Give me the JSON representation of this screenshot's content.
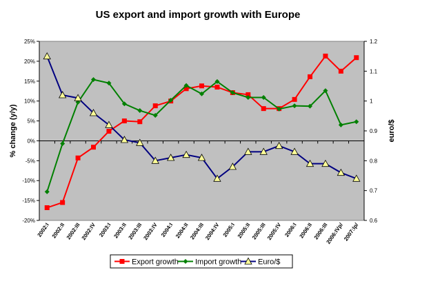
{
  "chart_data": {
    "type": "line",
    "title": "US export and import growth with Europe",
    "y_label": "% change (y/y)",
    "y2_label": "euro/$",
    "categories": [
      "2002:I",
      "2002:II",
      "2002:III",
      "2002:IV",
      "2003:I",
      "2003:II",
      "2003:III",
      "2003:IV",
      "2004:I",
      "2004:II",
      "2004:III",
      "2004:IV",
      "2005:I",
      "2005:II",
      "2005:III",
      "2005:IV",
      "2006:I",
      "2006:II",
      "2006:III",
      "2006:IVp/",
      "2007:Ip/"
    ],
    "series": [
      {
        "name": "Export growth",
        "color": "#ff0000",
        "marker": "square",
        "values": [
          -16.8,
          -15.5,
          -4.3,
          -1.6,
          2.4,
          5.0,
          4.8,
          8.8,
          10.0,
          13.1,
          13.8,
          13.5,
          12.1,
          11.6,
          8.1,
          8.1,
          10.4,
          16.1,
          21.3,
          17.5,
          20.9
        ]
      },
      {
        "name": "Import growth",
        "color": "#008000",
        "marker": "diamond",
        "values": [
          -12.8,
          -0.7,
          9.7,
          15.4,
          14.5,
          9.3,
          7.6,
          6.4,
          10.2,
          13.9,
          11.8,
          14.9,
          12.1,
          10.9,
          10.9,
          8.0,
          8.8,
          8.7,
          12.6,
          4.0,
          4.8
        ]
      },
      {
        "name": "Euro/$",
        "color": "#000080",
        "marker": "triangle",
        "marker_color": "#ffff99",
        "axis": "y2",
        "values": [
          1.15,
          1.02,
          1.01,
          0.96,
          0.92,
          0.87,
          0.86,
          0.8,
          0.81,
          0.82,
          0.81,
          0.74,
          0.78,
          0.83,
          0.83,
          0.85,
          0.83,
          0.79,
          0.79,
          0.76,
          0.74
        ]
      }
    ],
    "ylim": [
      -20,
      25
    ],
    "yticks": [
      {
        "value": -20,
        "label": "-20%"
      },
      {
        "value": -15,
        "label": "-15%"
      },
      {
        "value": -10,
        "label": "-10%"
      },
      {
        "value": -5,
        "label": "-5%"
      },
      {
        "value": 0,
        "label": "0%"
      },
      {
        "value": 5,
        "label": "5%"
      },
      {
        "value": 10,
        "label": "10%"
      },
      {
        "value": 15,
        "label": "15%"
      },
      {
        "value": 20,
        "label": "20%"
      },
      {
        "value": 25,
        "label": "25%"
      }
    ],
    "y2lim": [
      0.6,
      1.2
    ],
    "y2ticks": [
      0.6,
      0.7,
      0.8,
      0.9,
      1,
      1.1,
      1.2
    ],
    "plot_background": "#c0c0c0",
    "legend": "bottom"
  }
}
